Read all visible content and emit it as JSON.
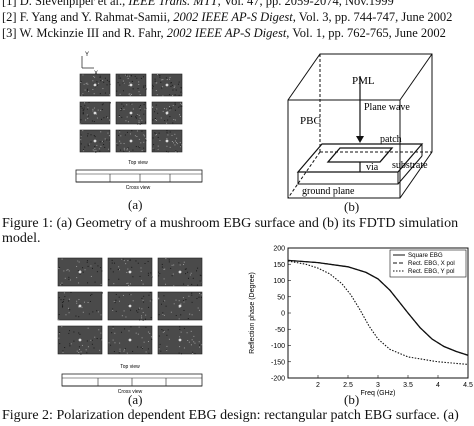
{
  "references": [
    {
      "pre": "[1] D. Sievenpiper et al., ",
      "ital": "IEEE Trans. MTT",
      "post": ", Vol. 47, pp. 2059-2074, Nov.1999"
    },
    {
      "pre": "[2] F. Yang and Y. Rahmat-Samii, ",
      "ital": "2002 IEEE AP-S Digest",
      "post": ", Vol. 3, pp. 744-747, June 2002"
    },
    {
      "pre": "[3] W. Mckinzie III and R. Fahr, ",
      "ital": "2002 IEEE AP-S Digest",
      "post": ", Vol. 1, pp. 762-765, June 2002"
    }
  ],
  "figure1": {
    "sub_a": "(a)",
    "sub_b": "(b)",
    "top_view_label": "Top view",
    "cross_view_label": "Cross view",
    "axis_y": "Y",
    "axis_x": "X",
    "model": {
      "pml": "PML",
      "pbc": "PBC",
      "plane_wave": "Plane wave",
      "patch": "patch",
      "via": "via",
      "substrate": "substrate",
      "ground_plane": "ground plane"
    },
    "caption_line1": "Figure 1: (a) Geometry of a mushroom EBG surface and (b) its FDTD simulation",
    "caption_line2": "model."
  },
  "figure2": {
    "sub_a": "(a)",
    "sub_b": "(b)",
    "top_view_label": "Top view",
    "cross_view_label": "Cross view",
    "caption": "Figure 2: Polarization dependent EBG design: rectangular patch EBG surface. (a)"
  },
  "chart_data": {
    "type": "line",
    "xlabel": "Freq (GHz)",
    "ylabel": "Reflection phase (Degree)",
    "xlim": [
      1.5,
      4.5
    ],
    "ylim": [
      -200,
      200
    ],
    "xticks": [
      "2",
      "2.5",
      "3",
      "3.5",
      "4",
      "4.5"
    ],
    "yticks": [
      "200",
      "150",
      "100",
      "50",
      "0",
      "-50",
      "-100",
      "-150",
      "-200"
    ],
    "legend_position": "top-right",
    "series": [
      {
        "name": "Square EBG",
        "style": "solid",
        "x": [
          1.5,
          2.0,
          2.5,
          2.8,
          3.0,
          3.2,
          3.35,
          3.5,
          3.7,
          3.9,
          4.1,
          4.3,
          4.5
        ],
        "y": [
          162,
          155,
          142,
          125,
          105,
          70,
          35,
          0,
          -45,
          -80,
          -103,
          -118,
          -130
        ]
      },
      {
        "name": "Rect. EBG, X pol",
        "style": "dashed",
        "x": [
          1.5,
          2.0,
          2.5,
          2.8,
          3.0,
          3.2,
          3.35,
          3.5,
          3.7,
          3.9,
          4.1,
          4.3,
          4.5
        ],
        "y": [
          162,
          155,
          142,
          125,
          105,
          70,
          35,
          0,
          -45,
          -80,
          -103,
          -118,
          -130
        ]
      },
      {
        "name": "Rect. EBG, Y pol",
        "style": "dotted",
        "x": [
          1.5,
          1.8,
          2.0,
          2.2,
          2.4,
          2.55,
          2.7,
          2.85,
          3.0,
          3.2,
          3.5,
          4.0,
          4.5
        ],
        "y": [
          160,
          150,
          138,
          120,
          90,
          55,
          10,
          -40,
          -80,
          -112,
          -135,
          -150,
          -158
        ]
      }
    ]
  }
}
